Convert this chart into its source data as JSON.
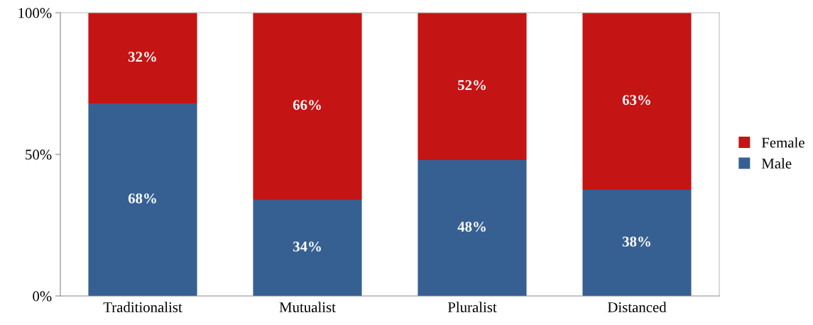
{
  "chart_data": {
    "type": "bar",
    "stacked": true,
    "categories": [
      "Traditionalist",
      "Mutualist",
      "Pluralist",
      "Distanced"
    ],
    "series": [
      {
        "name": "Male",
        "color": "#376092",
        "values": [
          68,
          34,
          48,
          37.5
        ],
        "value_labels": [
          "68%",
          "34%",
          "48%",
          "38%"
        ]
      },
      {
        "name": "Female",
        "color": "#c41414",
        "values": [
          32,
          66,
          52,
          62.5
        ],
        "value_labels": [
          "32%",
          "66%",
          "52%",
          "63%"
        ]
      }
    ],
    "ylim": [
      0,
      100
    ],
    "yticks": [
      {
        "value": 0,
        "label": "0%"
      },
      {
        "value": 50,
        "label": "50%"
      },
      {
        "value": 100,
        "label": "100%"
      }
    ],
    "grid": false,
    "legend": "right"
  }
}
